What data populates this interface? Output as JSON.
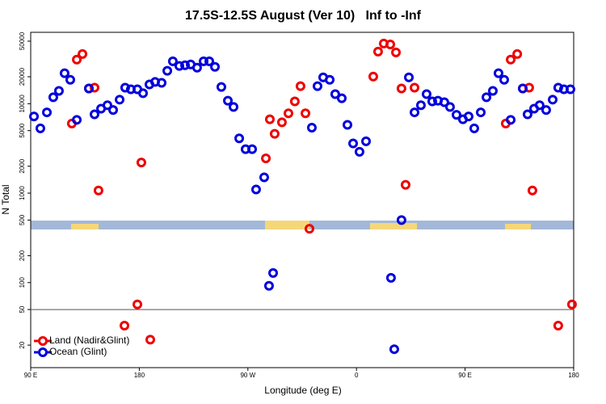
{
  "chart_data": {
    "type": "scatter",
    "title": "17.5S-12.5S August (Ver 10)   Inf to -Inf",
    "x_label": "Longitude (deg E)",
    "y_label": "N Total",
    "xlim": [
      90,
      540
    ],
    "xticks": [
      {
        "value": 90,
        "label": "90 E"
      },
      {
        "value": 180,
        "label": "180"
      },
      {
        "value": 270,
        "label": "90 W"
      },
      {
        "value": 360,
        "label": "0"
      },
      {
        "value": 450,
        "label": "90 E"
      },
      {
        "value": 540,
        "label": "180"
      }
    ],
    "ylim": [
      11.2,
      62800
    ],
    "y_log": true,
    "yticks": [
      20,
      50,
      100,
      200,
      500,
      1000,
      2000,
      5000,
      10000,
      20000,
      50000
    ],
    "hline": 50,
    "legend": "lower-left",
    "series": [
      {
        "name": "Land (Nadir&Glint)",
        "color": "#ee0000",
        "x": [
          124.1,
          128.2,
          132.9,
          138.2,
          142.9,
          146.2,
          178.4,
          167.7,
          181.7,
          189.1,
          284.9,
          288.2,
          292.2,
          298.2,
          303.6,
          308.9,
          313.6,
          317.7,
          321,
          373.9,
          377.9,
          382.6,
          388,
          392.7,
          397.3,
          400.7,
          408.1,
          483.7,
          487.8,
          493.2,
          497.8,
          503.1,
          505.8,
          527.2,
          538.6
        ],
        "values": [
          6000,
          31100,
          35900,
          14800,
          15100,
          1070,
          57,
          33,
          2200,
          23,
          2450,
          6700,
          4600,
          6200,
          7800,
          10600,
          15700,
          7800,
          400,
          20100,
          38200,
          47000,
          46000,
          37400,
          14800,
          1240,
          15100,
          6000,
          31100,
          35900,
          14800,
          15100,
          1070,
          33,
          57
        ]
      },
      {
        "name": "Ocean (Glint)",
        "color": "#0000dd",
        "x": [
          92.7,
          98,
          103.4,
          108.7,
          113.4,
          118.1,
          122.8,
          128.2,
          138.2,
          142.9,
          148.3,
          153.6,
          158.3,
          163.7,
          168.3,
          173,
          178.4,
          183.1,
          188.4,
          193.1,
          198.5,
          203.2,
          207.8,
          213.2,
          217.9,
          222.6,
          227.9,
          233.3,
          238,
          242.7,
          248,
          253.4,
          258.1,
          262.8,
          268.1,
          273.5,
          276.8,
          283.5,
          287.5,
          290.9,
          323,
          327.7,
          332.4,
          337.8,
          342.4,
          347.8,
          352.5,
          357.2,
          362.5,
          367.9,
          388.6,
          391.3,
          397.3,
          403.4,
          408.1,
          413.4,
          418.1,
          422.8,
          427.5,
          432.8,
          437.5,
          442.9,
          448.2,
          452.9,
          457.6,
          463,
          467.7,
          473,
          477.7,
          482.4,
          487.8,
          497.8,
          501.8,
          507.2,
          511.8,
          517.2,
          522.6,
          527.2,
          531.9,
          537.3
        ],
        "values": [
          7200,
          5300,
          8000,
          11800,
          13900,
          21900,
          18500,
          6600,
          14800,
          7600,
          8800,
          9600,
          8500,
          11100,
          15100,
          14500,
          14500,
          13100,
          16400,
          17500,
          17100,
          23300,
          29800,
          26400,
          26900,
          27500,
          25300,
          29800,
          29800,
          25800,
          15400,
          10800,
          9200,
          4100,
          3100,
          3100,
          1100,
          1500,
          92,
          128,
          5400,
          15700,
          19700,
          18500,
          12800,
          11500,
          5800,
          3600,
          2900,
          3800,
          113,
          18,
          500,
          19700,
          8000,
          9600,
          12800,
          10600,
          10800,
          10400,
          9200,
          7500,
          6700,
          7200,
          5300,
          8000,
          11800,
          13900,
          21900,
          18500,
          6600,
          14800,
          7600,
          8800,
          9600,
          8500,
          11100,
          15100,
          14500,
          14500
        ]
      }
    ]
  }
}
